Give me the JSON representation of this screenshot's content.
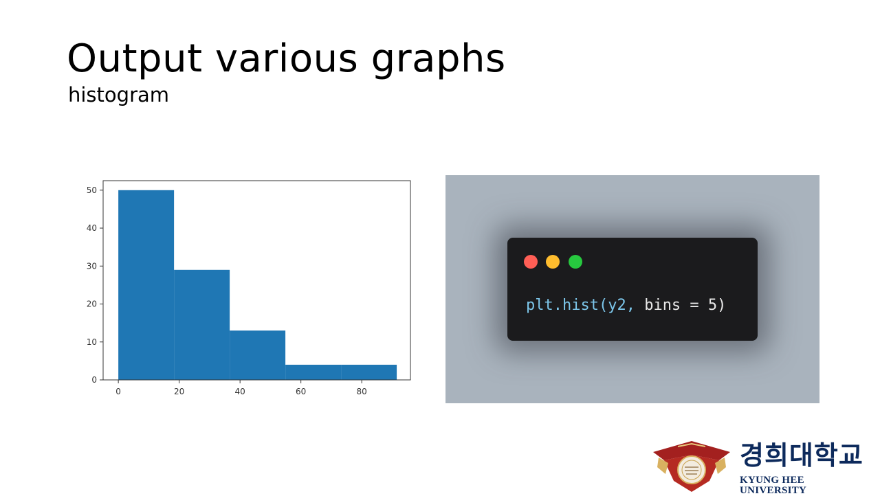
{
  "slide": {
    "title": "Output various graphs",
    "subtitle": "histogram"
  },
  "code": {
    "function_part": "plt.hist(y2,",
    "args_part": " bins = 5)"
  },
  "colors": {
    "bar": "#1f77b4",
    "panel_bg": "#a9b3bd",
    "window_bg": "#1b1b1d",
    "dot_red": "#ff5f56",
    "dot_yellow": "#ffbd2e",
    "dot_green": "#27c93f"
  },
  "logo": {
    "korean": "경희대학교",
    "english": "KYUNG HEE UNIVERSITY"
  },
  "chart_data": {
    "type": "bar",
    "title": "",
    "xlabel": "",
    "ylabel": "",
    "bins": [
      {
        "start": 0,
        "end": 18.3,
        "count": 50
      },
      {
        "start": 18.3,
        "end": 36.6,
        "count": 29
      },
      {
        "start": 36.6,
        "end": 54.9,
        "count": 13
      },
      {
        "start": 54.9,
        "end": 73.2,
        "count": 4
      },
      {
        "start": 73.2,
        "end": 91.5,
        "count": 4
      }
    ],
    "xlim": [
      -5,
      96
    ],
    "ylim": [
      0,
      52.5
    ],
    "xticks": [
      0,
      20,
      40,
      60,
      80
    ],
    "yticks": [
      0,
      10,
      20,
      30,
      40,
      50
    ],
    "grid": false,
    "legend": "none"
  }
}
